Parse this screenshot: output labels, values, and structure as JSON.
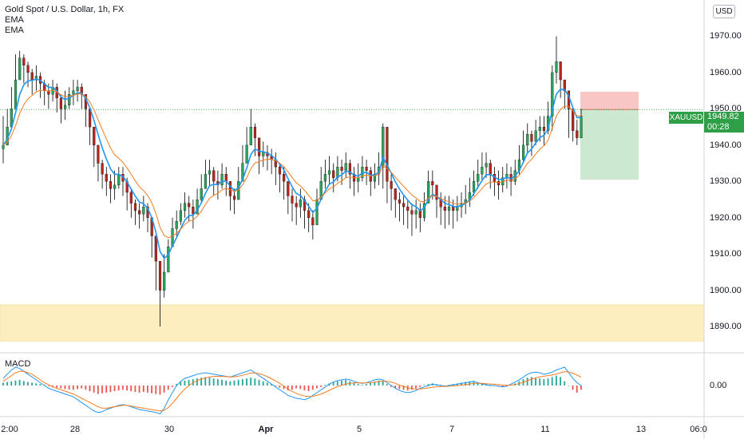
{
  "header": {
    "title": "Gold Spot / U.S. Dollar, 1h, FX",
    "indicators": [
      "EMA",
      "EMA"
    ],
    "currency": "USD"
  },
  "macd_label": "MACD",
  "price_tag": {
    "symbol": "XAUUSD",
    "price": "1949.82",
    "countdown": "00:28",
    "color": "#2e9e47"
  },
  "chart_data": [
    {
      "type": "line",
      "title": "Gold Spot / U.S. Dollar, 1h, FX",
      "y_axis": {
        "ylim": [
          1883,
          1980
        ],
        "ticks": [
          {
            "value": 1970,
            "label": "1970.00"
          },
          {
            "value": 1960,
            "label": "1960.00"
          },
          {
            "value": 1950,
            "label": "1950.00"
          },
          {
            "value": 1940,
            "label": "1940.00"
          },
          {
            "value": 1930,
            "label": "1930.00"
          },
          {
            "value": 1920,
            "label": "1920.00"
          },
          {
            "value": 1910,
            "label": "1910.00"
          },
          {
            "value": 1900,
            "label": "1900.00"
          },
          {
            "value": 1890,
            "label": "1890.00"
          }
        ]
      },
      "x_axis": {
        "ticks": [
          {
            "label": "2:00",
            "bold": false
          },
          {
            "label": "28",
            "bold": false
          },
          {
            "label": "30",
            "bold": false
          },
          {
            "label": "Apr",
            "bold": true
          },
          {
            "label": "5",
            "bold": false
          },
          {
            "label": "7",
            "bold": false
          },
          {
            "label": "11",
            "bold": false
          },
          {
            "label": "13",
            "bold": false
          },
          {
            "label": "06:0",
            "bold": false
          }
        ]
      },
      "price_close": [
        1940,
        1945,
        1950,
        1958,
        1964,
        1962,
        1960,
        1958,
        1959,
        1957,
        1955,
        1954,
        1956,
        1953,
        1950,
        1951,
        1954,
        1955,
        1956,
        1954,
        1950,
        1945,
        1940,
        1935,
        1932,
        1930,
        1928,
        1929,
        1932,
        1930,
        1927,
        1924,
        1922,
        1921,
        1923,
        1920,
        1915,
        1908,
        1900,
        1905,
        1912,
        1917,
        1919,
        1922,
        1924,
        1923,
        1921,
        1925,
        1928,
        1932,
        1933,
        1930,
        1929,
        1932,
        1930,
        1926,
        1925,
        1930,
        1935,
        1940,
        1945,
        1942,
        1937,
        1938,
        1937,
        1936,
        1934,
        1932,
        1930,
        1926,
        1924,
        1923,
        1925,
        1922,
        1920,
        1918,
        1925,
        1930,
        1932,
        1933,
        1931,
        1934,
        1933,
        1935,
        1932,
        1930,
        1931,
        1934,
        1933,
        1930,
        1932,
        1934,
        1945,
        1930,
        1928,
        1925,
        1924,
        1923,
        1922,
        1921,
        1922,
        1920,
        1924,
        1930,
        1929,
        1925,
        1923,
        1922,
        1923,
        1922,
        1923,
        1924,
        1925,
        1927,
        1930,
        1932,
        1934,
        1935,
        1932,
        1930,
        1929,
        1931,
        1932,
        1930,
        1933,
        1936,
        1940,
        1943,
        1941,
        1944,
        1945,
        1944,
        1948,
        1960,
        1963,
        1958,
        1955,
        1950,
        1944,
        1942,
        1948
      ],
      "price_high": [
        1948,
        1950,
        1956,
        1965,
        1966,
        1965,
        1963,
        1961,
        1962,
        1960,
        1958,
        1957,
        1958,
        1957,
        1954,
        1955,
        1956,
        1958,
        1958,
        1957,
        1954,
        1950,
        1944,
        1940,
        1936,
        1934,
        1932,
        1933,
        1934,
        1934,
        1931,
        1928,
        1925,
        1924,
        1926,
        1924,
        1920,
        1912,
        1905,
        1910,
        1914,
        1920,
        1922,
        1924,
        1927,
        1926,
        1925,
        1928,
        1932,
        1936,
        1936,
        1934,
        1933,
        1935,
        1934,
        1930,
        1928,
        1934,
        1940,
        1945,
        1950,
        1946,
        1940,
        1941,
        1940,
        1939,
        1938,
        1935,
        1934,
        1930,
        1928,
        1926,
        1928,
        1926,
        1924,
        1922,
        1928,
        1934,
        1936,
        1937,
        1935,
        1937,
        1936,
        1938,
        1936,
        1934,
        1935,
        1937,
        1936,
        1934,
        1935,
        1938,
        1946,
        1940,
        1932,
        1928,
        1927,
        1926,
        1925,
        1924,
        1925,
        1924,
        1927,
        1933,
        1933,
        1929,
        1927,
        1926,
        1926,
        1925,
        1926,
        1927,
        1929,
        1931,
        1933,
        1936,
        1938,
        1938,
        1936,
        1934,
        1933,
        1934,
        1935,
        1934,
        1936,
        1940,
        1944,
        1946,
        1944,
        1947,
        1948,
        1948,
        1952,
        1962,
        1970,
        1963,
        1958,
        1954,
        1949,
        1947,
        1950
      ],
      "price_low": [
        1935,
        1940,
        1946,
        1954,
        1959,
        1957,
        1956,
        1954,
        1955,
        1953,
        1951,
        1950,
        1952,
        1949,
        1946,
        1947,
        1950,
        1951,
        1952,
        1950,
        1945,
        1940,
        1934,
        1930,
        1928,
        1926,
        1924,
        1925,
        1928,
        1926,
        1922,
        1920,
        1918,
        1917,
        1919,
        1916,
        1909,
        1900,
        1890,
        1898,
        1906,
        1913,
        1915,
        1918,
        1920,
        1919,
        1917,
        1921,
        1924,
        1928,
        1929,
        1926,
        1925,
        1928,
        1926,
        1922,
        1921,
        1926,
        1931,
        1936,
        1940,
        1937,
        1932,
        1934,
        1933,
        1932,
        1929,
        1927,
        1925,
        1921,
        1919,
        1918,
        1920,
        1917,
        1916,
        1914,
        1920,
        1926,
        1928,
        1929,
        1927,
        1930,
        1929,
        1931,
        1928,
        1926,
        1927,
        1930,
        1929,
        1926,
        1928,
        1929,
        1928,
        1924,
        1922,
        1920,
        1919,
        1918,
        1917,
        1915,
        1917,
        1916,
        1919,
        1925,
        1925,
        1920,
        1918,
        1917,
        1918,
        1917,
        1919,
        1920,
        1921,
        1923,
        1926,
        1928,
        1930,
        1931,
        1928,
        1926,
        1925,
        1927,
        1928,
        1926,
        1929,
        1932,
        1935,
        1938,
        1937,
        1940,
        1941,
        1940,
        1943,
        1944,
        1957,
        1953,
        1950,
        1942,
        1941,
        1940,
        1943
      ],
      "ema_fast_color": "#2196f3",
      "ema_slow_color": "#f57c20"
    },
    {
      "type": "bar",
      "title": "MACD",
      "y_axis": {
        "ylim": [
          -2.2,
          2.2
        ],
        "ticks": [
          {
            "value": 0,
            "label": "0.00"
          }
        ]
      },
      "histogram": [
        0.2,
        0.25,
        0.3,
        0.35,
        0.4,
        0.32,
        0.25,
        0.2,
        0.15,
        0.1,
        0.05,
        -0.05,
        -0.1,
        -0.15,
        -0.2,
        -0.25,
        -0.28,
        -0.3,
        -0.25,
        -0.2,
        -0.3,
        -0.4,
        -0.5,
        -0.6,
        -0.55,
        -0.5,
        -0.45,
        -0.4,
        -0.35,
        -0.3,
        -0.35,
        -0.4,
        -0.45,
        -0.5,
        -0.45,
        -0.5,
        -0.55,
        -0.6,
        -0.65,
        -0.5,
        -0.3,
        -0.1,
        0.1,
        0.25,
        0.35,
        0.4,
        0.45,
        0.5,
        0.55,
        0.6,
        0.55,
        0.5,
        0.45,
        0.4,
        0.35,
        0.3,
        0.35,
        0.4,
        0.45,
        0.5,
        0.55,
        0.5,
        0.4,
        0.3,
        0.2,
        0.1,
        -0.05,
        -0.15,
        -0.25,
        -0.35,
        -0.3,
        -0.2,
        -0.25,
        -0.35,
        -0.4,
        -0.3,
        -0.2,
        -0.1,
        0.05,
        0.15,
        0.25,
        0.3,
        0.35,
        0.4,
        0.3,
        0.2,
        0.1,
        0.05,
        0.1,
        0.2,
        0.25,
        0.35,
        0.3,
        0.1,
        -0.1,
        -0.2,
        -0.25,
        -0.3,
        -0.35,
        -0.3,
        -0.2,
        -0.1,
        0.05,
        0.1,
        0.15,
        0.1,
        0.05,
        -0.02,
        0.05,
        0.1,
        0.15,
        0.2,
        0.25,
        0.3,
        0.25,
        0.2,
        0.15,
        0.1,
        0.05,
        0.0,
        -0.05,
        -0.1,
        -0.05,
        0.05,
        0.15,
        0.3,
        0.45,
        0.55,
        0.6,
        0.55,
        0.5,
        0.45,
        0.5,
        0.6,
        0.7,
        0.6,
        0.3,
        0.0,
        -0.3,
        -0.5,
        -0.3
      ],
      "macd_line": [
        0.5,
        0.8,
        1.1,
        1.3,
        1.2,
        1.0,
        0.8,
        0.6,
        0.4,
        0.2,
        0.0,
        -0.2,
        -0.3,
        -0.4,
        -0.5,
        -0.6,
        -0.7,
        -0.8,
        -1.0,
        -1.2,
        -1.4,
        -1.6,
        -1.8,
        -1.9,
        -1.85,
        -1.7,
        -1.6,
        -1.5,
        -1.4,
        -1.35,
        -1.4,
        -1.5,
        -1.6,
        -1.7,
        -1.75,
        -1.8,
        -1.85,
        -1.9,
        -2.0,
        -1.6,
        -1.0,
        -0.5,
        0.0,
        0.3,
        0.5,
        0.6,
        0.7,
        0.8,
        0.85,
        0.9,
        0.85,
        0.8,
        0.75,
        0.7,
        0.65,
        0.6,
        0.7,
        0.8,
        0.9,
        1.0,
        1.1,
        0.9,
        0.7,
        0.5,
        0.3,
        0.1,
        -0.1,
        -0.3,
        -0.5,
        -0.7,
        -0.8,
        -0.9,
        -0.95,
        -1.0,
        -0.9,
        -0.7,
        -0.5,
        -0.3,
        -0.1,
        0.1,
        0.25,
        0.35,
        0.4,
        0.45,
        0.4,
        0.3,
        0.2,
        0.15,
        0.2,
        0.3,
        0.4,
        0.45,
        0.4,
        0.2,
        0.0,
        -0.2,
        -0.35,
        -0.45,
        -0.5,
        -0.45,
        -0.35,
        -0.2,
        -0.1,
        0.0,
        0.1,
        0.05,
        0.0,
        -0.05,
        0.0,
        0.05,
        0.1,
        0.15,
        0.2,
        0.25,
        0.3,
        0.2,
        0.1,
        0.05,
        0.0,
        0.0,
        -0.05,
        -0.1,
        -0.05,
        0.1,
        0.25,
        0.4,
        0.6,
        0.8,
        0.9,
        0.95,
        0.9,
        0.8,
        0.85,
        0.95,
        1.1,
        1.2,
        1.3,
        0.9,
        0.5,
        0.2,
        0.0
      ],
      "signal_line": [
        0.3,
        0.5,
        0.7,
        0.9,
        1.0,
        1.0,
        0.9,
        0.8,
        0.6,
        0.4,
        0.2,
        0.05,
        -0.1,
        -0.2,
        -0.3,
        -0.4,
        -0.5,
        -0.6,
        -0.75,
        -0.9,
        -1.05,
        -1.2,
        -1.35,
        -1.5,
        -1.6,
        -1.6,
        -1.55,
        -1.5,
        -1.45,
        -1.4,
        -1.4,
        -1.45,
        -1.5,
        -1.55,
        -1.6,
        -1.65,
        -1.7,
        -1.75,
        -1.8,
        -1.75,
        -1.55,
        -1.25,
        -0.9,
        -0.55,
        -0.25,
        0.0,
        0.2,
        0.35,
        0.45,
        0.55,
        0.6,
        0.65,
        0.65,
        0.65,
        0.63,
        0.6,
        0.62,
        0.66,
        0.72,
        0.8,
        0.88,
        0.88,
        0.84,
        0.75,
        0.62,
        0.48,
        0.32,
        0.15,
        -0.05,
        -0.25,
        -0.42,
        -0.55,
        -0.66,
        -0.75,
        -0.78,
        -0.76,
        -0.7,
        -0.6,
        -0.48,
        -0.34,
        -0.2,
        -0.08,
        0.02,
        0.1,
        0.16,
        0.19,
        0.19,
        0.18,
        0.18,
        0.2,
        0.24,
        0.28,
        0.31,
        0.3,
        0.24,
        0.15,
        0.04,
        -0.07,
        -0.16,
        -0.22,
        -0.25,
        -0.24,
        -0.21,
        -0.17,
        -0.12,
        -0.09,
        -0.07,
        -0.06,
        -0.05,
        -0.03,
        0.0,
        0.03,
        0.07,
        0.11,
        0.15,
        0.16,
        0.15,
        0.13,
        0.11,
        0.09,
        0.06,
        0.03,
        0.01,
        0.03,
        0.07,
        0.14,
        0.23,
        0.34,
        0.45,
        0.55,
        0.62,
        0.66,
        0.7,
        0.75,
        0.82,
        0.9,
        0.98,
        0.96,
        0.87,
        0.74,
        0.6
      ],
      "macd_color": "#2196f3",
      "signal_color": "#f57c20"
    }
  ],
  "zones": {
    "demand_zone": {
      "from": 1886,
      "to": 1896,
      "color": "#fdeebf"
    },
    "stop_zone": {
      "from": 1949.8,
      "to": 1954.7,
      "color": "#f8c6c4"
    },
    "target_zone": {
      "from": 1930.5,
      "to": 1949.8,
      "color": "#cce8cf"
    },
    "last_price": 1949.82
  }
}
